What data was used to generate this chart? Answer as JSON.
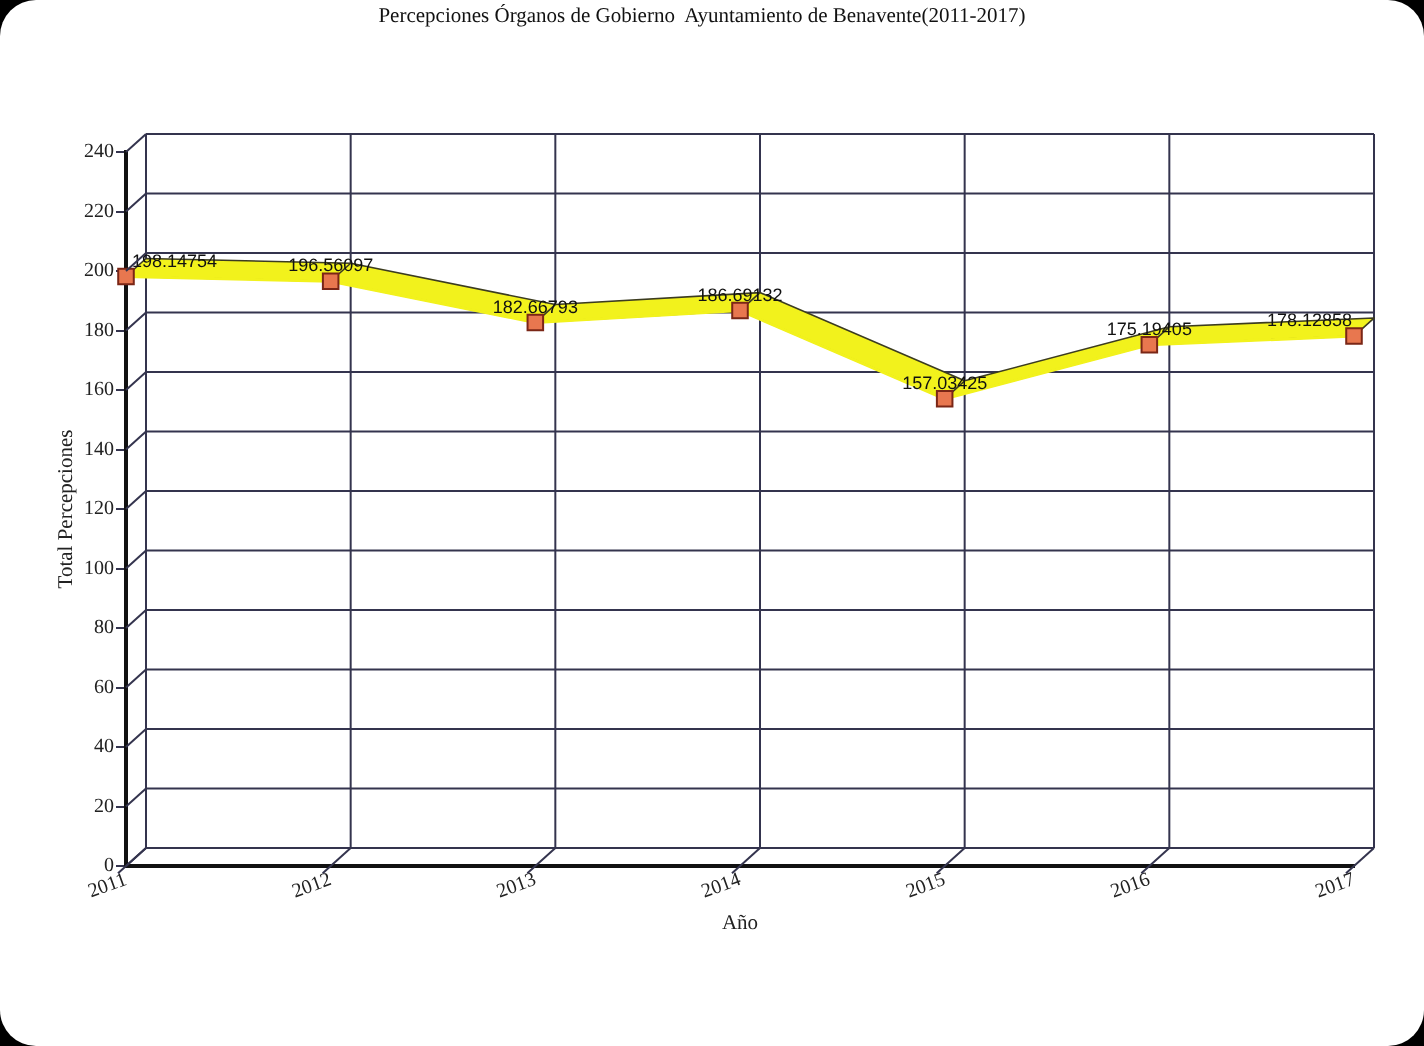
{
  "chart_data": {
    "type": "line",
    "title": "Percepciones Órganos de Gobierno  Ayuntamiento de Benavente(2011-2017)",
    "xlabel": "Año",
    "ylabel": "Total Percepciones",
    "categories": [
      "2011",
      "2012",
      "2013",
      "2014",
      "2015",
      "2016",
      "2017"
    ],
    "values": [
      198.14754,
      196.56097,
      182.66793,
      186.69132,
      157.03425,
      175.19405,
      178.12858
    ],
    "color": "#f2f21c",
    "ylim": [
      0,
      240
    ],
    "yticks": [
      0,
      20,
      40,
      60,
      80,
      100,
      120,
      140,
      160,
      180,
      200,
      220,
      240
    ],
    "grid": true,
    "marker": "square",
    "line_style": "solid",
    "data_labels": true
  }
}
